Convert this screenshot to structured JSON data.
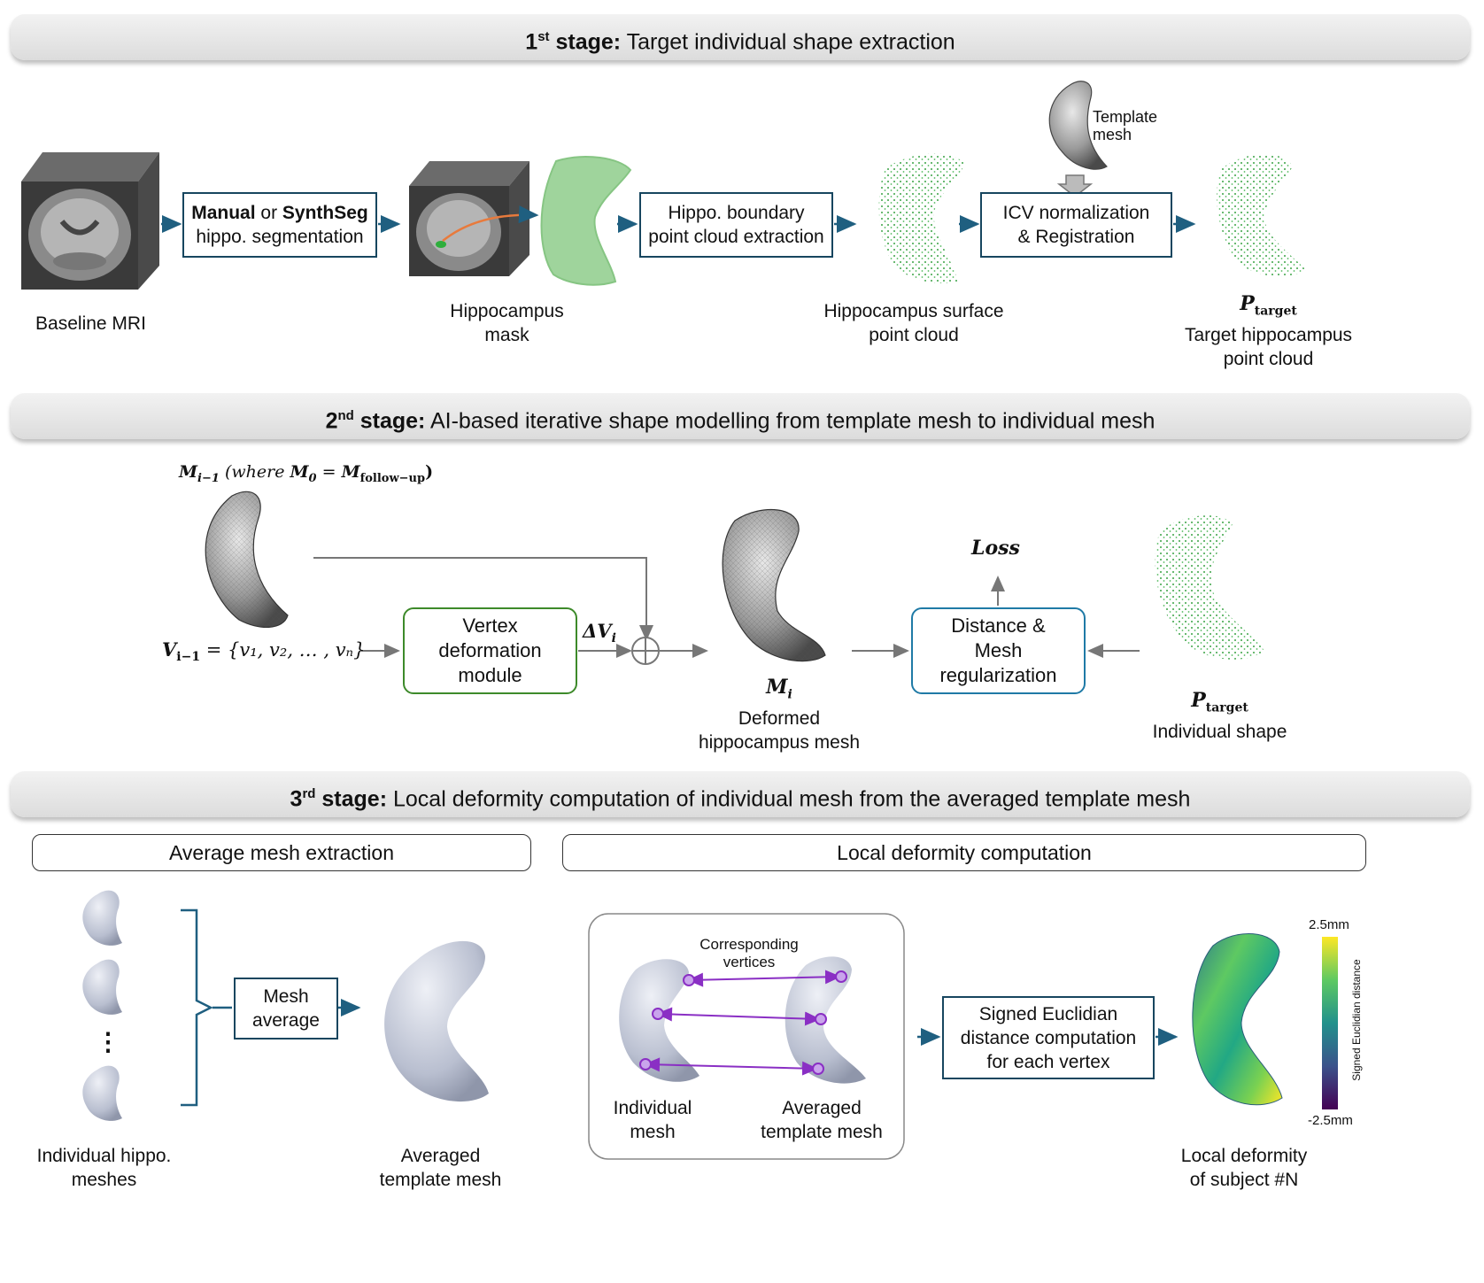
{
  "stage1": {
    "ordinal": "1",
    "sup": "st",
    "bold": " stage:",
    "title": " Target individual shape extraction",
    "baseline_caption": "Baseline MRI",
    "seg_box": {
      "bold1": "Manual",
      "mid": " or ",
      "bold2": "SynthSeg",
      "line2": "hippo. segmentation"
    },
    "mask_caption": [
      "Hippocampus",
      "mask"
    ],
    "boundary_box": [
      "Hippo. boundary",
      "point cloud extraction"
    ],
    "surface_caption": [
      "Hippocampus surface",
      "point cloud"
    ],
    "icv_box": [
      "ICV normalization",
      "& Registration"
    ],
    "template_caption": [
      "Template",
      "mesh"
    ],
    "target_symbol": "P",
    "target_sub": "target",
    "target_caption": [
      "Target hippocampus",
      "point cloud"
    ]
  },
  "stage2": {
    "ordinal": "2",
    "sup": "nd",
    "bold": " stage:",
    "title": " AI-based iterative shape modelling from template mesh to individual mesh",
    "m_prev": "M",
    "m_prev_sub": "i−1",
    "m_prev_where": " (where ",
    "m0": "M",
    "m0_sub": "0",
    "m0_eq": " = ",
    "mfu": "M",
    "mfu_sub": "follow−up",
    "m_close": ")",
    "v_prev": "V",
    "v_prev_sub": "i−1",
    "v_set": " = {v₁, v₂, … , vₙ}",
    "vdm_box": [
      "Vertex",
      "deformation",
      "module"
    ],
    "delta_v": "ΔV",
    "delta_v_sub": "i",
    "mi": "M",
    "mi_sub": "i",
    "mi_caption": [
      "Deformed",
      "hippocampus mesh"
    ],
    "loss": "Loss",
    "dist_box": [
      "Distance &",
      "Mesh",
      "regularization"
    ],
    "p_symbol": "P",
    "p_sub": "target",
    "p_caption": "Individual shape"
  },
  "stage3": {
    "ordinal": "3",
    "sup": "rd",
    "bold": " stage:",
    "title": " Local deformity computation of individual mesh from the averaged template mesh",
    "avg_section": "Average mesh extraction",
    "local_section": "Local deformity computation",
    "dots": "⋮",
    "indiv_caption": [
      "Individual hippo.",
      "meshes"
    ],
    "mesh_avg_box": [
      "Mesh",
      "average"
    ],
    "avg_caption": [
      "Averaged",
      "template mesh"
    ],
    "corresponding": [
      "Corresponding",
      "vertices"
    ],
    "ind_mesh_caption": [
      "Individual",
      "mesh"
    ],
    "avg_tmpl_caption": [
      "Averaged",
      "template mesh"
    ],
    "signed_box": [
      "Signed Euclidian",
      "distance computation",
      "for each vertex"
    ],
    "colorbar_max": "2.5mm",
    "colorbar_min": "-2.5mm",
    "colorbar_label": "Signed Euclidian distance",
    "local_caption": [
      "Local deformity",
      "of subject #N"
    ]
  },
  "colors": {
    "arrow_blue": "#1f5f80",
    "box_border": "#17465f",
    "green_box": "#3d8a2a",
    "blue_box": "#1f7aa6",
    "gray_arrow": "#777777",
    "purple": "#8a2fc4",
    "cloud_green": "#3aa344"
  }
}
